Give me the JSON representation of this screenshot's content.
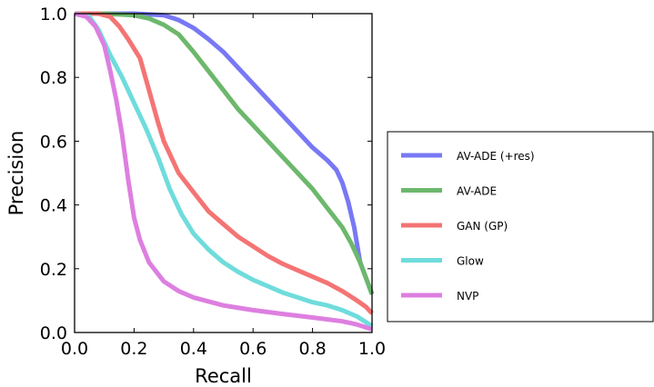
{
  "chart_data": {
    "type": "line",
    "xlabel": "Recall",
    "ylabel": "Precision",
    "xlim": [
      0.0,
      1.0
    ],
    "ylim": [
      0.0,
      1.0
    ],
    "xticks": [
      "0.0",
      "0.2",
      "0.4",
      "0.6",
      "0.8",
      "1.0"
    ],
    "yticks": [
      "0.0",
      "0.2",
      "0.4",
      "0.6",
      "0.8",
      "1.0"
    ],
    "grid": false,
    "legend_position": "outside-right",
    "series": [
      {
        "name": "AV-ADE (+res)",
        "color": "#7878f5",
        "points": [
          [
            0.0,
            1.0
          ],
          [
            0.1,
            1.0
          ],
          [
            0.2,
            1.0
          ],
          [
            0.3,
            0.995
          ],
          [
            0.35,
            0.98
          ],
          [
            0.4,
            0.955
          ],
          [
            0.45,
            0.92
          ],
          [
            0.5,
            0.88
          ],
          [
            0.55,
            0.83
          ],
          [
            0.6,
            0.78
          ],
          [
            0.65,
            0.73
          ],
          [
            0.7,
            0.68
          ],
          [
            0.75,
            0.63
          ],
          [
            0.8,
            0.58
          ],
          [
            0.85,
            0.54
          ],
          [
            0.88,
            0.51
          ],
          [
            0.9,
            0.47
          ],
          [
            0.92,
            0.41
          ],
          [
            0.94,
            0.33
          ],
          [
            0.96,
            0.22
          ],
          [
            0.98,
            0.17
          ],
          [
            1.0,
            0.12
          ]
        ]
      },
      {
        "name": "AV-ADE",
        "color": "#6cb86c",
        "points": [
          [
            0.0,
            1.0
          ],
          [
            0.1,
            1.0
          ],
          [
            0.2,
            0.995
          ],
          [
            0.25,
            0.985
          ],
          [
            0.3,
            0.965
          ],
          [
            0.35,
            0.935
          ],
          [
            0.4,
            0.88
          ],
          [
            0.45,
            0.82
          ],
          [
            0.5,
            0.76
          ],
          [
            0.55,
            0.7
          ],
          [
            0.6,
            0.65
          ],
          [
            0.65,
            0.6
          ],
          [
            0.7,
            0.55
          ],
          [
            0.75,
            0.5
          ],
          [
            0.8,
            0.45
          ],
          [
            0.85,
            0.39
          ],
          [
            0.9,
            0.33
          ],
          [
            0.93,
            0.28
          ],
          [
            0.96,
            0.22
          ],
          [
            0.98,
            0.17
          ],
          [
            1.0,
            0.12
          ]
        ]
      },
      {
        "name": "GAN (GP)",
        "color": "#f47474",
        "points": [
          [
            0.0,
            1.0
          ],
          [
            0.08,
            1.0
          ],
          [
            0.12,
            0.99
          ],
          [
            0.15,
            0.96
          ],
          [
            0.18,
            0.92
          ],
          [
            0.22,
            0.86
          ],
          [
            0.25,
            0.76
          ],
          [
            0.28,
            0.66
          ],
          [
            0.3,
            0.6
          ],
          [
            0.35,
            0.5
          ],
          [
            0.4,
            0.44
          ],
          [
            0.45,
            0.38
          ],
          [
            0.5,
            0.34
          ],
          [
            0.55,
            0.3
          ],
          [
            0.6,
            0.27
          ],
          [
            0.65,
            0.24
          ],
          [
            0.7,
            0.215
          ],
          [
            0.75,
            0.195
          ],
          [
            0.8,
            0.175
          ],
          [
            0.85,
            0.155
          ],
          [
            0.9,
            0.13
          ],
          [
            0.95,
            0.1
          ],
          [
            0.98,
            0.08
          ],
          [
            1.0,
            0.06
          ]
        ]
      },
      {
        "name": "Glow",
        "color": "#6fdcdc",
        "points": [
          [
            0.0,
            1.0
          ],
          [
            0.05,
            0.99
          ],
          [
            0.08,
            0.95
          ],
          [
            0.12,
            0.87
          ],
          [
            0.16,
            0.8
          ],
          [
            0.2,
            0.72
          ],
          [
            0.24,
            0.64
          ],
          [
            0.28,
            0.55
          ],
          [
            0.32,
            0.45
          ],
          [
            0.36,
            0.37
          ],
          [
            0.4,
            0.31
          ],
          [
            0.45,
            0.26
          ],
          [
            0.5,
            0.22
          ],
          [
            0.55,
            0.19
          ],
          [
            0.6,
            0.165
          ],
          [
            0.65,
            0.145
          ],
          [
            0.7,
            0.125
          ],
          [
            0.75,
            0.11
          ],
          [
            0.8,
            0.095
          ],
          [
            0.85,
            0.085
          ],
          [
            0.9,
            0.07
          ],
          [
            0.95,
            0.05
          ],
          [
            1.0,
            0.02
          ]
        ]
      },
      {
        "name": "NVP",
        "color": "#dd7fe0",
        "points": [
          [
            0.0,
            1.0
          ],
          [
            0.04,
            0.99
          ],
          [
            0.07,
            0.96
          ],
          [
            0.1,
            0.9
          ],
          [
            0.12,
            0.82
          ],
          [
            0.14,
            0.73
          ],
          [
            0.16,
            0.62
          ],
          [
            0.18,
            0.48
          ],
          [
            0.2,
            0.36
          ],
          [
            0.22,
            0.29
          ],
          [
            0.25,
            0.22
          ],
          [
            0.3,
            0.16
          ],
          [
            0.35,
            0.13
          ],
          [
            0.4,
            0.11
          ],
          [
            0.5,
            0.085
          ],
          [
            0.6,
            0.07
          ],
          [
            0.7,
            0.058
          ],
          [
            0.8,
            0.047
          ],
          [
            0.9,
            0.035
          ],
          [
            0.95,
            0.025
          ],
          [
            1.0,
            0.01
          ]
        ]
      }
    ]
  }
}
